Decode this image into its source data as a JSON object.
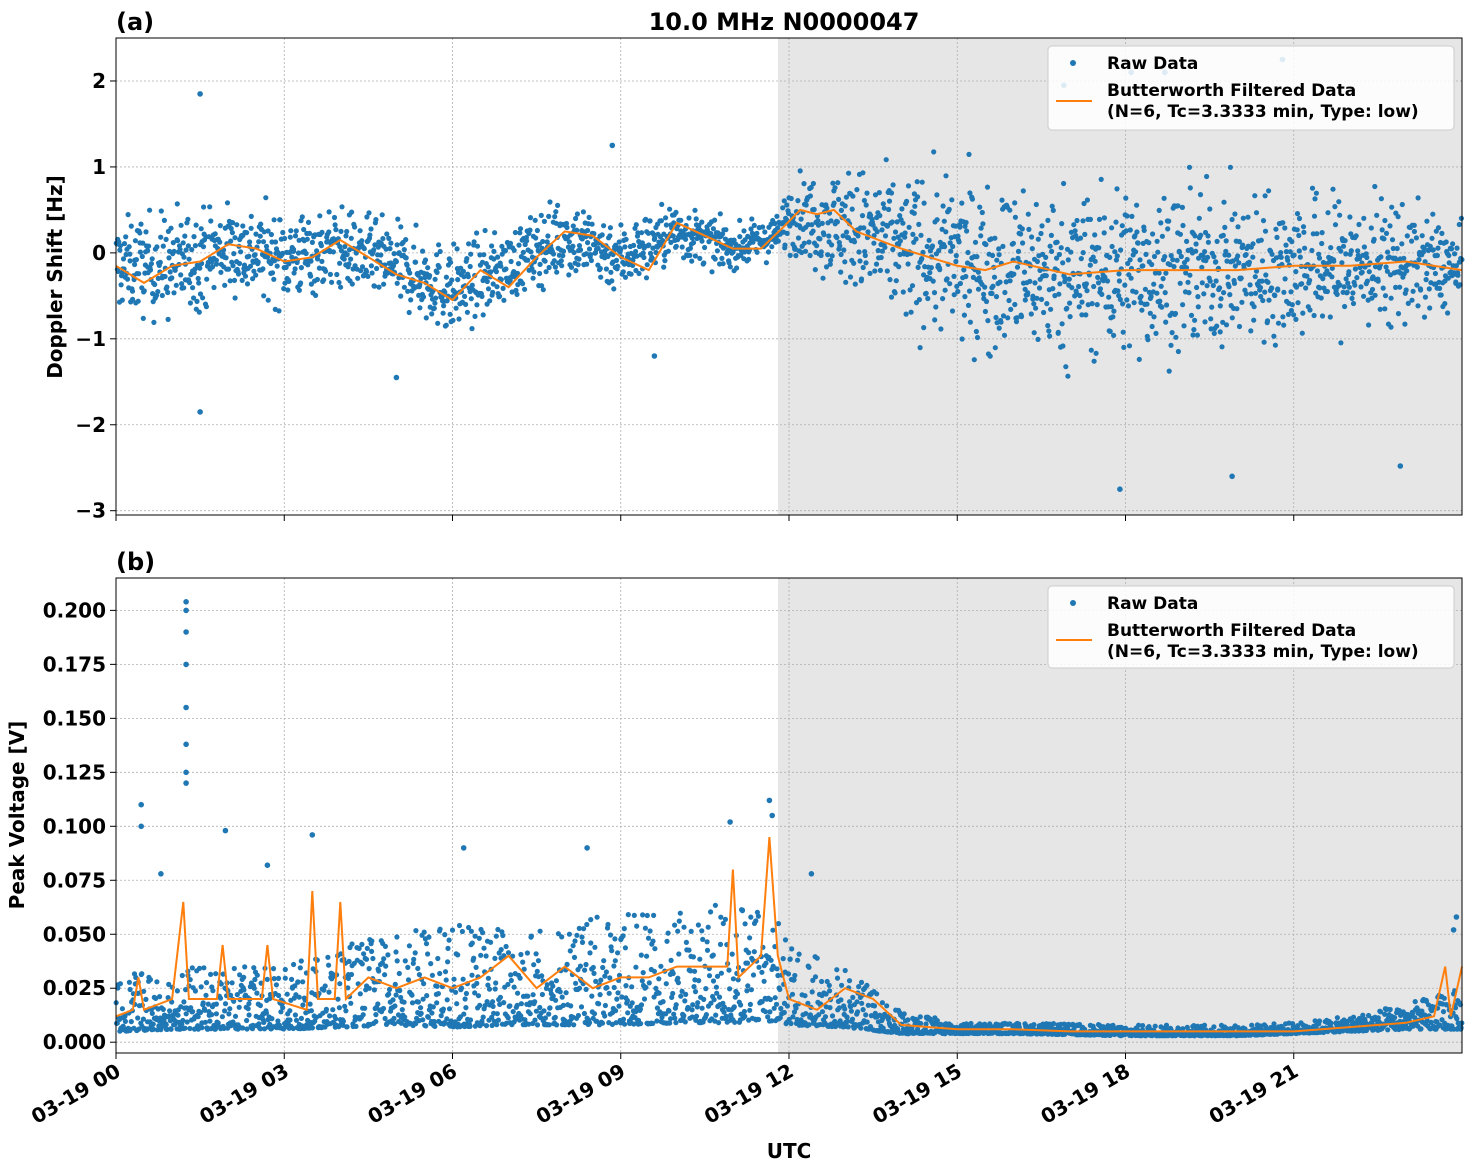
{
  "colors": {
    "raw": "#1f77b4",
    "filtered": "#ff7f0e",
    "shade": "#e6e6e6",
    "grid": "#b0b0b0"
  },
  "xlabel": "UTC",
  "x_ticks": [
    "03-19 00",
    "03-19 03",
    "03-19 06",
    "03-19 09",
    "03-19 12",
    "03-19 15",
    "03-19 18",
    "03-19 21"
  ],
  "shaded_from": "03-19 11:50",
  "shaded_to": "03-20 00:00",
  "chart_data": [
    {
      "type": "scatter",
      "panel_label": "(a)",
      "title": "10.0 MHz N0000047",
      "ylabel": "Doppler Shift [Hz]",
      "ylim": [
        -3.05,
        2.5
      ],
      "y_ticks": [
        "2",
        "1",
        "0",
        "−1",
        "−2",
        "−3"
      ],
      "y_tick_values": [
        2,
        1,
        0,
        -1,
        -2,
        -3
      ],
      "xlim_hours": [
        0,
        24
      ],
      "grid": true,
      "legend_position": "upper right",
      "legend": {
        "raw": "Raw Data",
        "filtered_line1": "Butterworth Filtered Data",
        "filtered_line2": "(N=6, Tc=3.3333 min, Type: low)"
      },
      "filtered_series": {
        "name": "Butterworth Filtered Data",
        "x_hours": [
          0,
          0.5,
          1,
          1.5,
          2,
          2.5,
          3,
          3.5,
          4,
          4.5,
          5,
          5.5,
          6,
          6.5,
          7,
          7.5,
          8,
          8.5,
          9,
          9.5,
          10,
          10.5,
          11,
          11.5,
          11.9,
          12.2,
          12.5,
          12.8,
          13.2,
          13.6,
          14,
          14.5,
          15,
          15.5,
          16,
          17,
          18,
          19,
          20,
          21,
          22,
          23,
          24
        ],
        "y": [
          -0.15,
          -0.35,
          -0.15,
          -0.1,
          0.1,
          0.05,
          -0.1,
          -0.05,
          0.15,
          -0.05,
          -0.25,
          -0.35,
          -0.55,
          -0.2,
          -0.4,
          -0.05,
          0.25,
          0.2,
          -0.05,
          -0.2,
          0.35,
          0.2,
          0.05,
          0.05,
          0.3,
          0.5,
          0.45,
          0.5,
          0.25,
          0.15,
          0.05,
          -0.05,
          -0.15,
          -0.2,
          -0.1,
          -0.25,
          -0.2,
          -0.2,
          -0.2,
          -0.15,
          -0.15,
          -0.1,
          -0.2
        ]
      },
      "raw_envelope": {
        "x_hours": [
          0,
          1,
          2,
          3,
          4,
          5,
          6,
          7,
          8,
          9,
          10,
          11,
          11.8,
          12,
          13,
          14,
          15,
          16,
          17,
          18,
          19,
          20,
          21,
          22,
          23,
          24
        ],
        "center": [
          -0.15,
          -0.15,
          0.05,
          -0.05,
          0.05,
          -0.15,
          -0.45,
          -0.15,
          0.2,
          -0.05,
          0.25,
          0.05,
          0.2,
          0.45,
          0.3,
          0.05,
          -0.1,
          -0.2,
          -0.25,
          -0.2,
          -0.2,
          -0.2,
          -0.15,
          -0.15,
          -0.1,
          -0.2
        ],
        "spread": [
          0.45,
          0.55,
          0.45,
          0.45,
          0.4,
          0.4,
          0.45,
          0.35,
          0.4,
          0.35,
          0.3,
          0.2,
          0.2,
          0.35,
          0.6,
          0.75,
          0.8,
          0.85,
          0.85,
          0.85,
          0.8,
          0.75,
          0.75,
          0.7,
          0.6,
          0.4
        ]
      },
      "raw_highlights": [
        {
          "x_hours": 1.5,
          "y": 1.85
        },
        {
          "x_hours": 1.5,
          "y": -1.85
        },
        {
          "x_hours": 8.85,
          "y": 1.25
        },
        {
          "x_hours": 17.9,
          "y": -2.75
        },
        {
          "x_hours": 19.9,
          "y": -2.6
        },
        {
          "x_hours": 22.9,
          "y": -2.48
        },
        {
          "x_hours": 16.9,
          "y": 1.95
        },
        {
          "x_hours": 18.7,
          "y": 2.1
        },
        {
          "x_hours": 20.8,
          "y": 2.25
        },
        {
          "x_hours": 18.1,
          "y": 2.1
        },
        {
          "x_hours": 5.0,
          "y": -1.45
        },
        {
          "x_hours": 9.6,
          "y": -1.2
        }
      ]
    },
    {
      "type": "scatter",
      "panel_label": "(b)",
      "title": "",
      "ylabel": "Peak Voltage [V]",
      "ylim": [
        -0.005,
        0.215
      ],
      "y_ticks": [
        "0.200",
        "0.175",
        "0.150",
        "0.125",
        "0.100",
        "0.075",
        "0.050",
        "0.025",
        "0.000"
      ],
      "y_tick_values": [
        0.2,
        0.175,
        0.15,
        0.125,
        0.1,
        0.075,
        0.05,
        0.025,
        0.0
      ],
      "xlim_hours": [
        0,
        24
      ],
      "grid": true,
      "legend_position": "upper right",
      "legend": {
        "raw": "Raw Data",
        "filtered_line1": "Butterworth Filtered Data",
        "filtered_line2": "(N=6, Tc=3.3333 min, Type: low)"
      },
      "filtered_series": {
        "name": "Butterworth Filtered Data",
        "x_hours": [
          0,
          0.3,
          0.4,
          0.5,
          1.0,
          1.2,
          1.3,
          1.4,
          1.8,
          1.9,
          2.0,
          2.6,
          2.7,
          2.8,
          3.4,
          3.5,
          3.6,
          3.9,
          4.0,
          4.1,
          4.5,
          5.0,
          5.5,
          6.0,
          6.5,
          7.0,
          7.5,
          8.0,
          8.5,
          9.0,
          9.5,
          10.0,
          10.5,
          10.9,
          11.0,
          11.1,
          11.5,
          11.65,
          11.8,
          12.0,
          12.5,
          13.0,
          13.5,
          14.0,
          14.5,
          15.0,
          16.0,
          17.0,
          18.0,
          19.0,
          20.0,
          21.0,
          22.0,
          23.0,
          23.5,
          23.7,
          23.8,
          24.0
        ],
        "y": [
          0.012,
          0.015,
          0.03,
          0.015,
          0.02,
          0.065,
          0.02,
          0.02,
          0.02,
          0.045,
          0.02,
          0.02,
          0.045,
          0.02,
          0.015,
          0.07,
          0.02,
          0.02,
          0.065,
          0.02,
          0.03,
          0.025,
          0.03,
          0.025,
          0.03,
          0.04,
          0.025,
          0.035,
          0.025,
          0.03,
          0.03,
          0.035,
          0.035,
          0.035,
          0.08,
          0.03,
          0.04,
          0.095,
          0.04,
          0.02,
          0.015,
          0.025,
          0.02,
          0.008,
          0.007,
          0.006,
          0.006,
          0.005,
          0.005,
          0.005,
          0.005,
          0.005,
          0.007,
          0.009,
          0.012,
          0.035,
          0.012,
          0.035
        ]
      },
      "raw_envelope": {
        "x_hours": [
          0,
          1,
          2,
          3,
          4,
          5,
          6,
          7,
          8,
          9,
          10,
          11,
          11.8,
          12,
          13,
          14,
          15,
          16,
          18,
          20,
          21,
          22,
          23,
          24
        ],
        "low": [
          0.005,
          0.006,
          0.006,
          0.006,
          0.007,
          0.008,
          0.007,
          0.008,
          0.008,
          0.008,
          0.009,
          0.009,
          0.01,
          0.008,
          0.007,
          0.004,
          0.004,
          0.004,
          0.003,
          0.003,
          0.004,
          0.005,
          0.006,
          0.006
        ],
        "high": [
          0.03,
          0.035,
          0.035,
          0.035,
          0.045,
          0.05,
          0.055,
          0.055,
          0.055,
          0.06,
          0.06,
          0.065,
          0.06,
          0.045,
          0.035,
          0.015,
          0.009,
          0.009,
          0.008,
          0.008,
          0.009,
          0.012,
          0.018,
          0.025
        ]
      },
      "raw_highlights": [
        {
          "x_hours": 1.25,
          "y": 0.204
        },
        {
          "x_hours": 1.25,
          "y": 0.2
        },
        {
          "x_hours": 1.25,
          "y": 0.19
        },
        {
          "x_hours": 1.25,
          "y": 0.175
        },
        {
          "x_hours": 1.25,
          "y": 0.155
        },
        {
          "x_hours": 1.25,
          "y": 0.138
        },
        {
          "x_hours": 1.25,
          "y": 0.125
        },
        {
          "x_hours": 1.25,
          "y": 0.12
        },
        {
          "x_hours": 0.45,
          "y": 0.11
        },
        {
          "x_hours": 0.45,
          "y": 0.1
        },
        {
          "x_hours": 1.95,
          "y": 0.098
        },
        {
          "x_hours": 3.5,
          "y": 0.096
        },
        {
          "x_hours": 11.65,
          "y": 0.112
        },
        {
          "x_hours": 11.7,
          "y": 0.105
        },
        {
          "x_hours": 10.95,
          "y": 0.102
        },
        {
          "x_hours": 8.4,
          "y": 0.09
        },
        {
          "x_hours": 6.2,
          "y": 0.09
        },
        {
          "x_hours": 2.7,
          "y": 0.082
        },
        {
          "x_hours": 0.8,
          "y": 0.078
        },
        {
          "x_hours": 12.4,
          "y": 0.078
        },
        {
          "x_hours": 23.9,
          "y": 0.058
        },
        {
          "x_hours": 23.85,
          "y": 0.052
        }
      ]
    }
  ]
}
